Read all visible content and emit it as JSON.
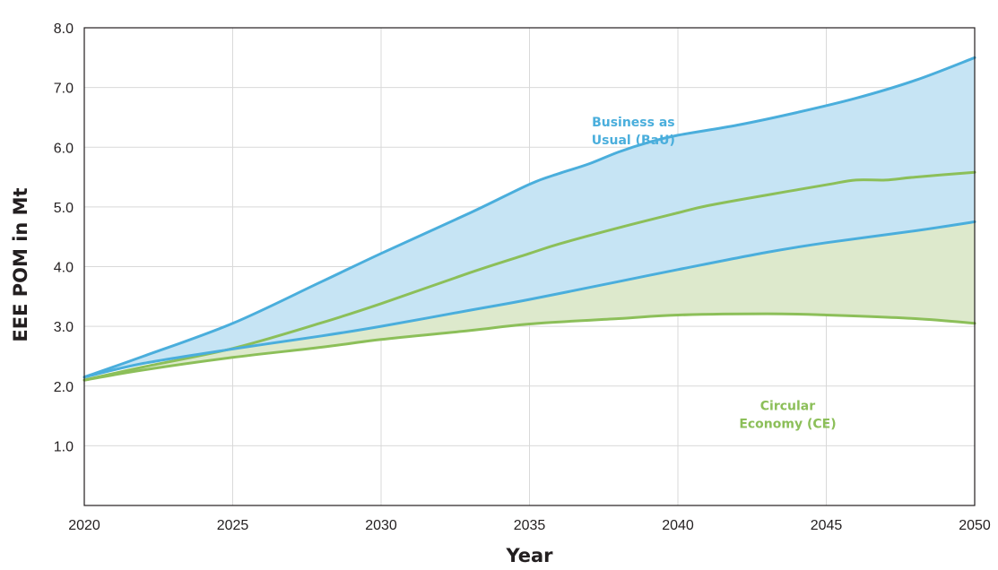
{
  "chart_data": {
    "type": "area",
    "xlabel": "Year",
    "ylabel": "EEE POM in Mt",
    "xlim": [
      2020,
      2050
    ],
    "ylim": [
      0,
      8
    ],
    "x_ticks": [
      "2020",
      "2025",
      "2030",
      "2035",
      "2040",
      "2045",
      "2050"
    ],
    "y_ticks": [
      "1.0",
      "2.0",
      "3.0",
      "4.0",
      "5.0",
      "6.0",
      "7.0",
      "8.0"
    ],
    "grid": true,
    "colors": {
      "bau_line": "#4aaedc",
      "bau_fill": "#c6e4f4",
      "ce_line": "#8cbf59",
      "ce_fill": "#dde9cc",
      "grid": "#d9d9d9",
      "axis": "#231f20"
    },
    "annotations": [
      {
        "lines": [
          "Business as",
          "Usual (BaU)"
        ],
        "x": 2038.5,
        "y": 6.35,
        "color": "#4aaedc"
      },
      {
        "lines": [
          "Circular",
          "Economy (CE)"
        ],
        "x": 2043.7,
        "y": 1.6,
        "color": "#8cbf59"
      }
    ],
    "series": [
      {
        "role": "bau_upper",
        "x": [
          2020,
          2022,
          2025,
          2028,
          2030,
          2033,
          2035,
          2036,
          2037,
          2038,
          2039,
          2040,
          2042,
          2044,
          2046,
          2048,
          2050
        ],
        "values": [
          2.15,
          2.5,
          3.05,
          3.75,
          4.22,
          4.9,
          5.38,
          5.56,
          5.72,
          5.92,
          6.08,
          6.2,
          6.37,
          6.58,
          6.82,
          7.12,
          7.5
        ]
      },
      {
        "role": "bau_lower",
        "x": [
          2020,
          2022,
          2025,
          2028,
          2030,
          2033,
          2035,
          2038,
          2040,
          2043,
          2045,
          2048,
          2050
        ],
        "values": [
          2.15,
          2.38,
          2.62,
          2.84,
          3.0,
          3.27,
          3.45,
          3.75,
          3.95,
          4.24,
          4.4,
          4.6,
          4.75
        ]
      },
      {
        "role": "ce_upper",
        "x": [
          2020,
          2022,
          2025,
          2028,
          2030,
          2033,
          2035,
          2036,
          2038,
          2040,
          2041,
          2043,
          2045,
          2046,
          2047,
          2048,
          2050
        ],
        "values": [
          2.1,
          2.32,
          2.63,
          3.06,
          3.38,
          3.9,
          4.22,
          4.38,
          4.65,
          4.9,
          5.02,
          5.2,
          5.37,
          5.45,
          5.45,
          5.5,
          5.58
        ]
      },
      {
        "role": "ce_lower",
        "x": [
          2020,
          2022,
          2025,
          2028,
          2030,
          2033,
          2035,
          2038,
          2040,
          2043,
          2045,
          2048,
          2050
        ],
        "values": [
          2.1,
          2.27,
          2.48,
          2.65,
          2.78,
          2.93,
          3.04,
          3.13,
          3.19,
          3.21,
          3.19,
          3.13,
          3.05
        ]
      }
    ]
  }
}
